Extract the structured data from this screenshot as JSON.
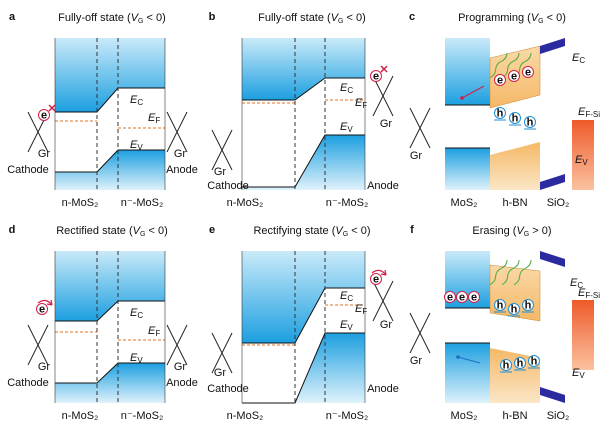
{
  "panels": [
    {
      "letter": "a",
      "title": {
        "text": "Fully-off state (",
        "var": "V",
        "sub": "G",
        "rest": " < 0)"
      },
      "energy": [
        {
          "symbol": "E",
          "sub": "C"
        },
        {
          "symbol": "E",
          "sub": "F"
        },
        {
          "symbol": "E",
          "sub": "V"
        }
      ],
      "electrode": "Gr",
      "left": "Cathode",
      "right": "Anode",
      "regions": [
        "n-MoS₂",
        "n⁻-MoS₂"
      ],
      "electron": "e"
    },
    {
      "letter": "b",
      "title": {
        "text": "Fully-off state (",
        "var": "V",
        "sub": "G",
        "rest": " < 0)"
      },
      "energy": [
        {
          "symbol": "E",
          "sub": "C"
        },
        {
          "symbol": "E",
          "sub": "F"
        },
        {
          "symbol": "E",
          "sub": "V"
        }
      ],
      "electrode": "Gr",
      "left": "Cathode",
      "right": "Anode",
      "regions": [
        "n-MoS₂",
        "n⁻-MoS₂"
      ],
      "electron": "e"
    },
    {
      "letter": "c",
      "title": {
        "text": "Programming (",
        "var": "V",
        "sub": "G",
        "rest": " < 0)"
      },
      "energy": [
        {
          "symbol": "E",
          "sub": "C"
        },
        {
          "symbol": "E",
          "sub": "V"
        },
        {
          "symbol": "E",
          "sub": "F-Si"
        }
      ],
      "electrode": "Gr",
      "regions": [
        "MoS₂",
        "h-BN",
        "SiO₂"
      ],
      "electron": "e",
      "hole": "h"
    },
    {
      "letter": "d",
      "title": {
        "text": "Rectified state (",
        "var": "V",
        "sub": "G",
        "rest": " < 0)"
      },
      "energy": [
        {
          "symbol": "E",
          "sub": "C"
        },
        {
          "symbol": "E",
          "sub": "F"
        },
        {
          "symbol": "E",
          "sub": "V"
        }
      ],
      "electrode": "Gr",
      "left": "Cathode",
      "right": "Anode",
      "regions": [
        "n-MoS₂",
        "n⁻-MoS₂"
      ],
      "electron": "e"
    },
    {
      "letter": "e",
      "title": {
        "text": "Rectifying state (",
        "var": "V",
        "sub": "G",
        "rest": " < 0)"
      },
      "energy": [
        {
          "symbol": "E",
          "sub": "C"
        },
        {
          "symbol": "E",
          "sub": "F"
        },
        {
          "symbol": "E",
          "sub": "V"
        }
      ],
      "electrode": "Gr",
      "left": "Cathode",
      "right": "Anode",
      "regions": [
        "n-MoS₂",
        "n⁻-MoS₂"
      ],
      "electron": "e"
    },
    {
      "letter": "f",
      "title": {
        "text": "Erasing (",
        "var": "V",
        "sub": "G",
        "rest": " > 0)"
      },
      "energy": [
        {
          "symbol": "E",
          "sub": "C"
        },
        {
          "symbol": "E",
          "sub": "V"
        },
        {
          "symbol": "E",
          "sub": "F-Si"
        }
      ],
      "electrode": "Gr",
      "regions": [
        "MoS₂",
        "h-BN",
        "SiO₂"
      ],
      "electron": "e",
      "hole": "h"
    }
  ]
}
